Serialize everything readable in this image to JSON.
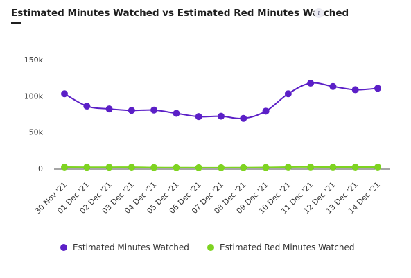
{
  "header": {
    "title": "Estimated Minutes Watched vs Estimated Red Minutes Watched",
    "info_icon": "i"
  },
  "colors": {
    "series_1": "#5b1fc7",
    "series_2": "#7ed321",
    "axis": "#4d4d4d",
    "text": "#333333"
  },
  "chart_data": {
    "type": "line",
    "title": "Estimated Minutes Watched vs Estimated Red Minutes Watched",
    "xlabel": "",
    "ylabel": "",
    "ylim": [
      0,
      150000
    ],
    "yticks": [
      {
        "value": 0,
        "label": "0"
      },
      {
        "value": 50000,
        "label": "50k"
      },
      {
        "value": 100000,
        "label": "100k"
      },
      {
        "value": 150000,
        "label": "150k"
      }
    ],
    "grid": false,
    "legend_position": "bottom",
    "categories": [
      "30 Nov '21",
      "01 Dec '21",
      "02 Dec '21",
      "03 Dec '21",
      "04 Dec '21",
      "05 Dec '21",
      "06 Dec '21",
      "07 Dec '21",
      "08 Dec '21",
      "09 Dec '21",
      "10 Dec '21",
      "11 Dec '21",
      "12 Dec '21",
      "13 Dec '21",
      "14 Dec '21"
    ],
    "series": [
      {
        "name": "Estimated Minutes Watched",
        "color": "#5b1fc7",
        "values": [
          103000,
          86000,
          82000,
          80000,
          80500,
          76000,
          71500,
          72000,
          69000,
          79000,
          103000,
          117500,
          113000,
          108500,
          110500
        ]
      },
      {
        "name": "Estimated Red Minutes Watched",
        "color": "#7ed321",
        "values": [
          1900,
          1700,
          1700,
          1800,
          1300,
          1200,
          1100,
          1100,
          1200,
          1400,
          1900,
          2000,
          1900,
          1900,
          1900
        ]
      }
    ]
  }
}
